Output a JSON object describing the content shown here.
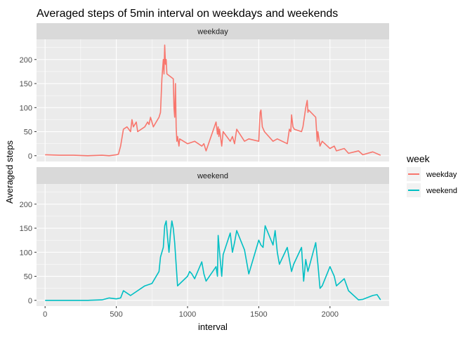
{
  "chart_data": {
    "type": "line",
    "title": "Averaged steps of 5min interval on weekdays and weekends",
    "xlabel": "interval",
    "ylabel": "Averaged steps",
    "xlim": [
      -60,
      2415
    ],
    "ylim": [
      -12,
      242
    ],
    "x_ticks": [
      0,
      500,
      1000,
      1500,
      2000
    ],
    "y_ticks": [
      0,
      50,
      100,
      150,
      200
    ],
    "legend": {
      "title": "week",
      "position": "right"
    },
    "background": "#EBEBEB",
    "strip_background": "#D9D9D9",
    "panels": [
      {
        "strip": "weekday",
        "series_name": "weekday",
        "color": "#F8766D",
        "x": [
          0,
          100,
          200,
          300,
          400,
          450,
          500,
          515,
          530,
          550,
          575,
          600,
          610,
          620,
          640,
          650,
          700,
          720,
          730,
          740,
          760,
          800,
          810,
          820,
          830,
          835,
          840,
          845,
          850,
          855,
          900,
          905,
          910,
          915,
          920,
          925,
          930,
          940,
          945,
          1000,
          1050,
          1100,
          1115,
          1130,
          1200,
          1210,
          1215,
          1220,
          1225,
          1240,
          1250,
          1300,
          1315,
          1330,
          1345,
          1400,
          1430,
          1500,
          1510,
          1515,
          1525,
          1540,
          1600,
          1630,
          1700,
          1715,
          1725,
          1730,
          1740,
          1750,
          1800,
          1810,
          1830,
          1840,
          1845,
          1850,
          1900,
          1910,
          1915,
          1930,
          1945,
          2000,
          2030,
          2045,
          2100,
          2130,
          2200,
          2230,
          2300,
          2355
        ],
        "y": [
          2,
          1,
          1,
          0,
          1,
          0,
          2,
          3,
          20,
          55,
          60,
          50,
          75,
          60,
          70,
          50,
          60,
          70,
          65,
          80,
          60,
          80,
          90,
          160,
          200,
          170,
          230,
          190,
          200,
          170,
          160,
          100,
          80,
          150,
          60,
          30,
          40,
          20,
          35,
          25,
          30,
          20,
          25,
          10,
          70,
          45,
          60,
          40,
          55,
          20,
          50,
          30,
          40,
          25,
          55,
          30,
          35,
          30,
          90,
          95,
          60,
          50,
          30,
          35,
          25,
          55,
          50,
          85,
          60,
          55,
          50,
          60,
          100,
          115,
          90,
          95,
          80,
          30,
          50,
          20,
          30,
          15,
          20,
          10,
          15,
          5,
          10,
          2,
          8,
          1
        ]
      },
      {
        "strip": "weekend",
        "series_name": "weekend",
        "color": "#00BFC4",
        "x": [
          0,
          100,
          200,
          300,
          400,
          450,
          500,
          530,
          550,
          600,
          700,
          750,
          800,
          810,
          830,
          840,
          850,
          860,
          870,
          880,
          890,
          900,
          910,
          930,
          1000,
          1015,
          1030,
          1050,
          1100,
          1115,
          1130,
          1200,
          1210,
          1215,
          1225,
          1240,
          1250,
          1300,
          1315,
          1330,
          1345,
          1400,
          1430,
          1500,
          1515,
          1530,
          1545,
          1600,
          1615,
          1630,
          1645,
          1700,
          1715,
          1730,
          1745,
          1800,
          1815,
          1830,
          1845,
          1900,
          1915,
          1930,
          1945,
          2000,
          2030,
          2045,
          2100,
          2130,
          2200,
          2230,
          2300,
          2330,
          2355
        ],
        "y": [
          0,
          0,
          0,
          0,
          1,
          5,
          3,
          5,
          20,
          10,
          30,
          35,
          60,
          90,
          110,
          155,
          165,
          130,
          100,
          140,
          165,
          150,
          120,
          30,
          50,
          60,
          55,
          45,
          80,
          55,
          40,
          70,
          50,
          135,
          100,
          50,
          95,
          140,
          100,
          120,
          145,
          105,
          55,
          125,
          115,
          110,
          155,
          115,
          145,
          100,
          75,
          110,
          85,
          60,
          75,
          110,
          40,
          85,
          60,
          120,
          75,
          25,
          30,
          70,
          50,
          30,
          45,
          20,
          1,
          2,
          10,
          12,
          1
        ]
      }
    ]
  }
}
